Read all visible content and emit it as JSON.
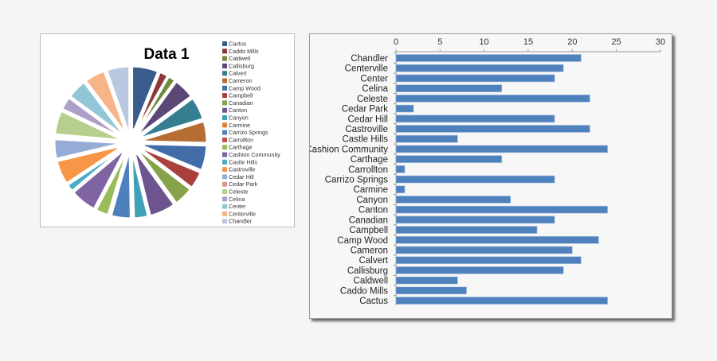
{
  "chart_data": [
    {
      "type": "pie",
      "title": "Data 1",
      "legend_position": "right",
      "exploded": true,
      "categories": [
        "Cactus",
        "Caddo Mills",
        "Caldwell",
        "Callisburg",
        "Calvert",
        "Cameron",
        "Camp Wood",
        "Campbell",
        "Canadian",
        "Canton",
        "Canyon",
        "Carmine",
        "Carrizo Springs",
        "Carrollton",
        "Carthage",
        "Cashion Community",
        "Castle Hills",
        "Castroville",
        "Cedar Hill",
        "Cedar Park",
        "Celeste",
        "Celina",
        "Center",
        "Centerville",
        "Chandler"
      ],
      "values": [
        24,
        8,
        7,
        19,
        21,
        20,
        23,
        16,
        18,
        24,
        13,
        1,
        18,
        1,
        12,
        24,
        7,
        22,
        18,
        2,
        22,
        12,
        18,
        19,
        21
      ],
      "colors": [
        "#385d8a",
        "#8c3836",
        "#71893f",
        "#5c4776",
        "#357d91",
        "#b66d31",
        "#426da9",
        "#a9403d",
        "#87a34a",
        "#6e548f",
        "#40a0b8",
        "#dd8034",
        "#4e80bd",
        "#c0504d",
        "#9bbb59",
        "#8064a2",
        "#4bacc6",
        "#f79646",
        "#95add6",
        "#d99694",
        "#b7cf8e",
        "#ad9fc7",
        "#92c6d7",
        "#f8b489",
        "#b9c7e0"
      ]
    },
    {
      "type": "bar",
      "orientation": "horizontal",
      "categories": [
        "Chandler",
        "Centerville",
        "Center",
        "Celina",
        "Celeste",
        "Cedar Park",
        "Cedar Hill",
        "Castroville",
        "Castle Hills",
        "Cashion Community",
        "Carthage",
        "Carrollton",
        "Carrizo Springs",
        "Carmine",
        "Canyon",
        "Canton",
        "Canadian",
        "Campbell",
        "Camp Wood",
        "Cameron",
        "Calvert",
        "Callisburg",
        "Caldwell",
        "Caddo Mills",
        "Cactus"
      ],
      "values": [
        21,
        19,
        18,
        12,
        22,
        2,
        18,
        22,
        7,
        24,
        12,
        1,
        18,
        1,
        13,
        24,
        18,
        16,
        23,
        20,
        21,
        19,
        7,
        8,
        24
      ],
      "xlim": [
        0,
        30
      ],
      "xticks": [
        "0",
        "5",
        "10",
        "15",
        "20",
        "25",
        "30"
      ],
      "axis_position": "top",
      "grid": false,
      "bar_color": "#4f81bd"
    }
  ]
}
